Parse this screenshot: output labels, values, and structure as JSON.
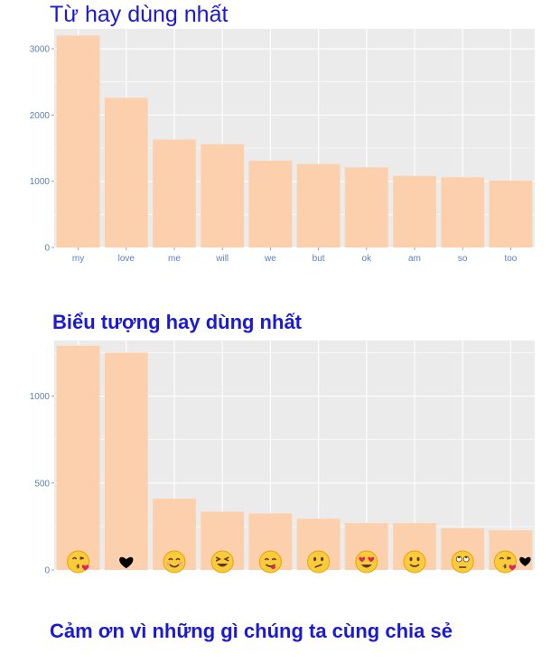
{
  "titles": {
    "words": "Từ hay dùng nhất",
    "emoji": "Biểu tượng hay dùng nhất",
    "footer": "Cảm ơn vì những gì chúng ta cùng chia sẻ"
  },
  "colors": {
    "title": "#1a1ad6",
    "bar": "#fdd0ad",
    "panel": "#ebebeb",
    "grid": "#ffffff",
    "tick_label": "#5a7fbf"
  },
  "chart_data": [
    {
      "type": "bar",
      "title": "Từ hay dùng nhất",
      "categories": [
        "my",
        "love",
        "me",
        "will",
        "we",
        "but",
        "ok",
        "am",
        "so",
        "too"
      ],
      "values": [
        3200,
        2260,
        1630,
        1560,
        1310,
        1260,
        1210,
        1080,
        1060,
        1010
      ],
      "ylim": [
        0,
        3300
      ],
      "yticks": [
        0,
        1000,
        2000,
        3000
      ],
      "grid": true
    },
    {
      "type": "bar",
      "title": "Biểu tượng hay dùng nhất",
      "categories": [
        "kissing-heart-face",
        "black-heart",
        "smiling-face",
        "squinting-face",
        "yum-face",
        "confused-face",
        "heart-eyes-face",
        "slight-smile-face",
        "eye-roll-face",
        "kissing-heart-face-with-heart"
      ],
      "values": [
        1290,
        1250,
        410,
        335,
        325,
        295,
        270,
        270,
        240,
        228
      ],
      "ylim": [
        0,
        1320
      ],
      "yticks": [
        0,
        500,
        1000
      ],
      "grid": true
    }
  ]
}
